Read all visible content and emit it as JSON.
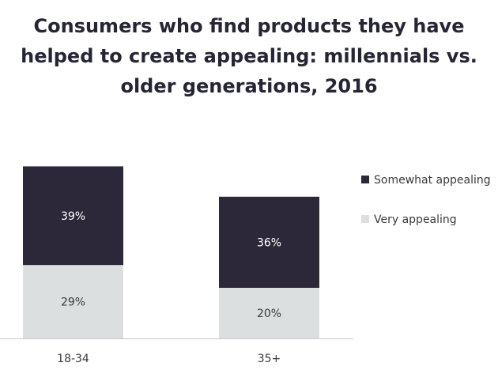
{
  "chart_data": {
    "type": "bar",
    "stacked": true,
    "title_lines": [
      "Consumers who find products they have",
      "helped to create appealing: millennials vs.",
      "older generations, 2016"
    ],
    "categories": [
      "18-34",
      "35+"
    ],
    "series": [
      {
        "name": "Very appealing",
        "values": [
          29,
          20
        ],
        "labels": [
          "29%",
          "20%"
        ],
        "color": "#dcdfe0",
        "label_color": "#3a3a3a"
      },
      {
        "name": "Somewhat appealing",
        "values": [
          39,
          36
        ],
        "labels": [
          "39%",
          "36%"
        ],
        "color": "#2c2839",
        "label_color": "#ffffff"
      }
    ],
    "legend_order": [
      "Somewhat appealing",
      "Very appealing"
    ],
    "legend_position": "right",
    "xlabel": "",
    "ylabel": "",
    "ylim": [
      0,
      100
    ],
    "grid": false,
    "y_axis_visible": false
  }
}
